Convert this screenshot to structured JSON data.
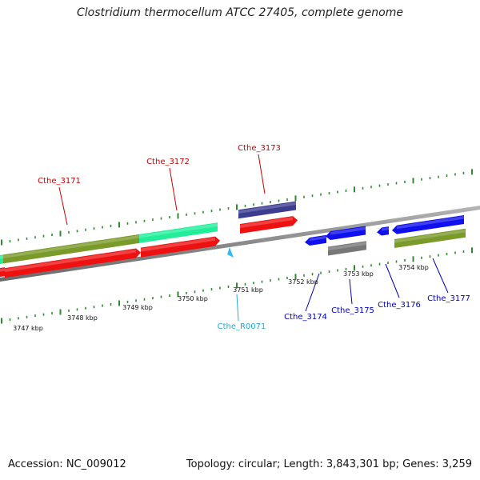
{
  "title": "Clostridium thermocellum ATCC 27405, complete genome",
  "footer": {
    "accession": "Accession: NC_009012",
    "topology": "Topology: circular; Length: 3,843,301 bp; Genes: 3,259"
  },
  "colors": {
    "backbone": "#8c8c8c",
    "tick": "#2f8a2f",
    "forward_label": "#cc0000",
    "reverse_label": "#0000bb",
    "rna_label": "#22aadd",
    "olive": "#7a9a2a",
    "aqua": "#22ee99",
    "red": "#ee1111",
    "navy": "#3c3c90",
    "blue": "#1010ee",
    "gray": "#777777",
    "cyan": "#33bbee"
  },
  "scale": {
    "unit": "kbp",
    "labels": [
      {
        "value": 3747,
        "text": "3747 kbp"
      },
      {
        "value": 3748,
        "text": "3748 kbp"
      },
      {
        "value": 3749,
        "text": "3749 kbp"
      },
      {
        "value": 3750,
        "text": "3750 kbp"
      },
      {
        "value": 3751,
        "text": "3751 kbp"
      },
      {
        "value": 3752,
        "text": "3752 kbp"
      },
      {
        "value": 3753,
        "text": "3753 kbp"
      },
      {
        "value": 3754,
        "text": "3754 kbp"
      }
    ]
  },
  "genes": [
    {
      "id": "Cthe_3171",
      "label": "Cthe_3171",
      "strand": "forward",
      "color_key": "forward_label"
    },
    {
      "id": "Cthe_3172",
      "label": "Cthe_3172",
      "strand": "forward",
      "color_key": "forward_label"
    },
    {
      "id": "Cthe_3173",
      "label": "Cthe_3173",
      "strand": "forward",
      "color_key": "forward_label"
    },
    {
      "id": "Cthe_R0071",
      "label": "Cthe_R0071",
      "strand": "reverse",
      "color_key": "rna_label"
    },
    {
      "id": "Cthe_3174",
      "label": "Cthe_3174",
      "strand": "reverse",
      "color_key": "reverse_label"
    },
    {
      "id": "Cthe_3175",
      "label": "Cthe_3175",
      "strand": "reverse",
      "color_key": "reverse_label"
    },
    {
      "id": "Cthe_3176",
      "label": "Cthe_3176",
      "strand": "reverse",
      "color_key": "reverse_label"
    },
    {
      "id": "Cthe_3177",
      "label": "Cthe_3177",
      "strand": "reverse",
      "color_key": "reverse_label"
    }
  ]
}
